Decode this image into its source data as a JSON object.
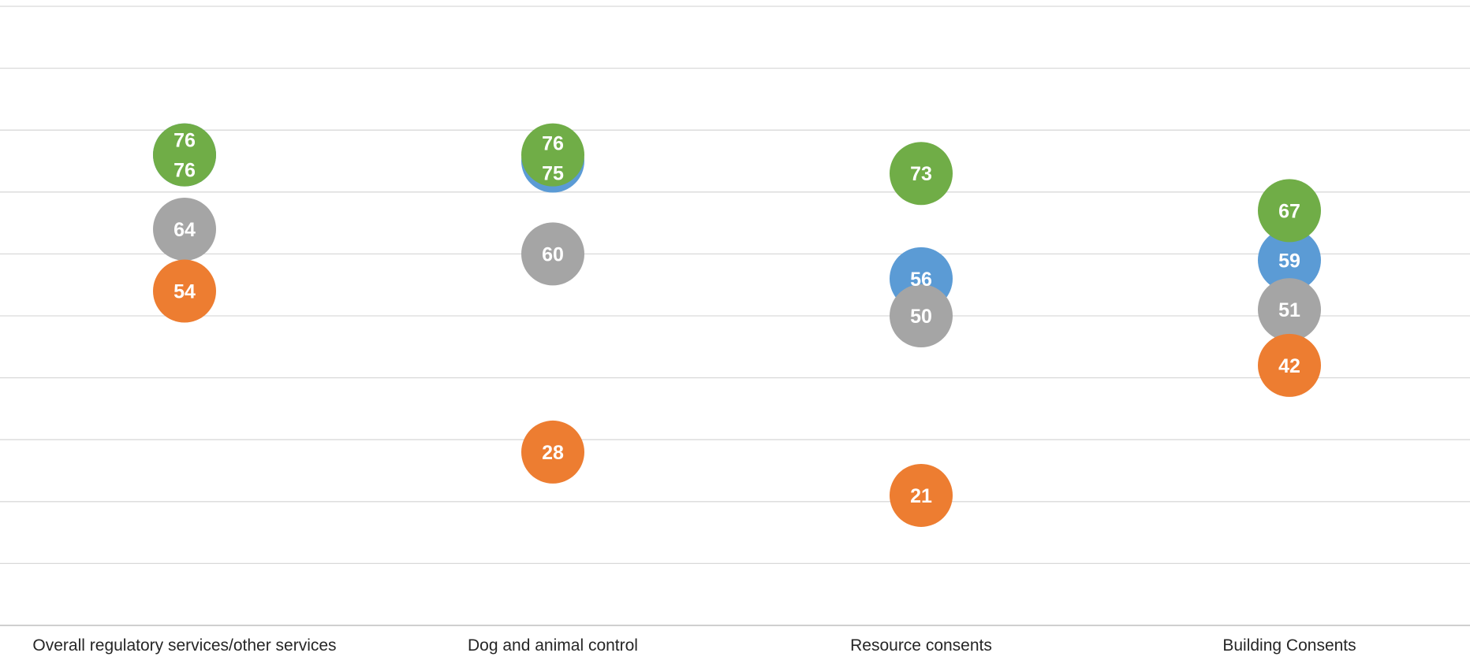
{
  "chart_data": {
    "type": "scatter",
    "title": "",
    "xlabel": "",
    "ylabel": "",
    "ylim": [
      0,
      100
    ],
    "y_tick_step": 10,
    "grid": true,
    "legend": "none",
    "categories": [
      "Overall regulatory services/other services",
      "Dog and animal control",
      "Resource consents",
      "Building Consents"
    ],
    "series": [
      {
        "color": "#5b9bd5",
        "values": [
          76,
          75,
          56,
          59
        ]
      },
      {
        "color": "#a5a5a5",
        "values": [
          64,
          60,
          50,
          51
        ]
      },
      {
        "color": "#ed7d31",
        "values": [
          54,
          28,
          21,
          42
        ]
      },
      {
        "color": "#70ad47",
        "values": [
          76,
          76,
          73,
          67
        ]
      }
    ]
  }
}
